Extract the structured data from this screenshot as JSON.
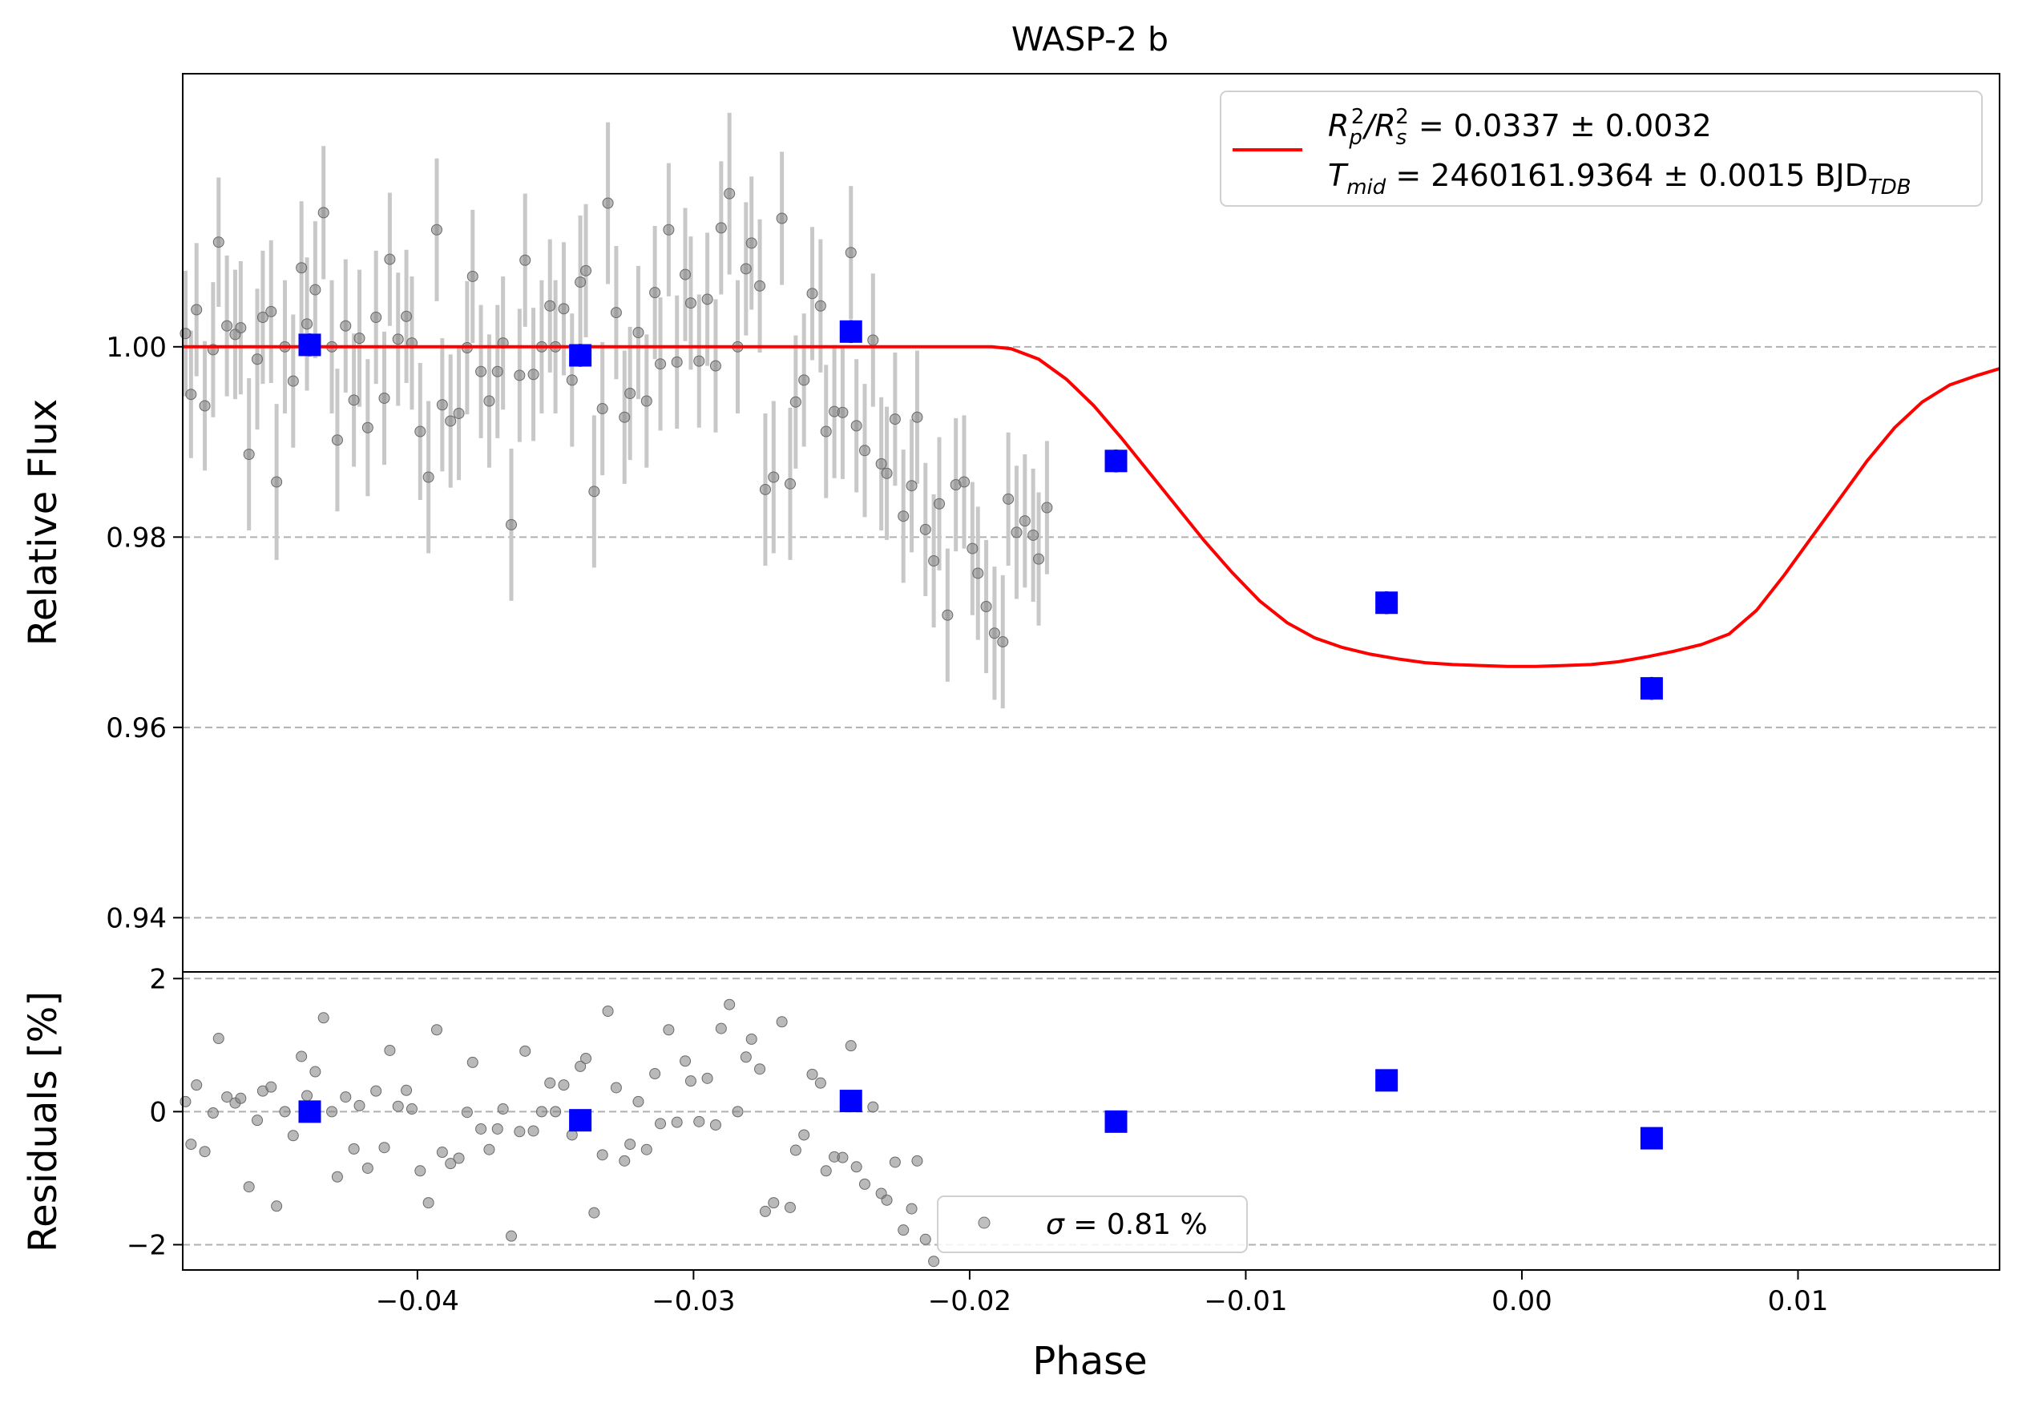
{
  "chart_data": [
    {
      "panel": "main",
      "type": "scatter",
      "title": "WASP-2 b",
      "xlabel": "",
      "ylabel": "Relative Flux",
      "xlim": [
        -0.0485,
        0.0173
      ],
      "ylim": [
        0.9343,
        1.0287
      ],
      "yticks": [
        0.94,
        0.96,
        0.98,
        1.0
      ],
      "ytick_labels": [
        "0.94",
        "0.96",
        "0.98",
        "1.00"
      ],
      "grid": "horizontal dashed",
      "legend_placement": "top-right",
      "legend": {
        "line1": {
          "main": "R",
          "sub": "p",
          "sup": "2",
          "mid": "/R",
          "sub2": "s",
          "sup2": "2",
          "rest": " = 0.0337 ± 0.0032"
        },
        "line2": {
          "main": "T",
          "sub": "mid",
          "rest": " = 2460161.9364 ± 0.0015 BJD",
          "sub2": "TDB"
        }
      },
      "colors": {
        "model": "#ff0000",
        "binned": "#0000ff",
        "points": "#808080",
        "errorbars": "#c8c8c8"
      },
      "model": {
        "name": "transit model",
        "x": [
          -0.0485,
          -0.03,
          -0.0192,
          -0.0185,
          -0.0175,
          -0.0165,
          -0.0155,
          -0.0145,
          -0.0135,
          -0.0125,
          -0.0115,
          -0.0105,
          -0.0095,
          -0.0085,
          -0.0075,
          -0.0065,
          -0.0055,
          -0.0045,
          -0.0035,
          -0.0025,
          -0.0015,
          -0.0005,
          0.0005,
          0.0015,
          0.0025,
          0.0035,
          0.0045,
          0.0055,
          0.0065,
          0.0075,
          0.0085,
          0.0095,
          0.0105,
          0.0115,
          0.0125,
          0.0135,
          0.0145,
          0.0155,
          0.0165,
          0.0173
        ],
        "y": [
          1.0,
          1.0,
          1.0,
          0.9998,
          0.9987,
          0.9966,
          0.9938,
          0.9904,
          0.9868,
          0.9832,
          0.9796,
          0.9763,
          0.9733,
          0.971,
          0.9694,
          0.9684,
          0.9677,
          0.9672,
          0.9668,
          0.9666,
          0.9665,
          0.9664,
          0.9664,
          0.9665,
          0.9666,
          0.9669,
          0.9674,
          0.968,
          0.9687,
          0.9698,
          0.9723,
          0.976,
          0.98,
          0.984,
          0.988,
          0.9915,
          0.9942,
          0.996,
          0.997,
          0.9977
        ]
      },
      "binned": {
        "name": "binned",
        "points": [
          [
            -0.0439,
            1.0002,
            0.0012
          ],
          [
            -0.0341,
            0.9991,
            0.0012
          ],
          [
            -0.0243,
            1.0016,
            0.0012
          ],
          [
            -0.0147,
            0.988,
            0.0012
          ],
          [
            -0.0049,
            0.9731,
            0.0012
          ],
          [
            0.0047,
            0.9641,
            0.0012
          ]
        ]
      },
      "points": [
        [
          -0.0484,
          1.0014,
          0.0066
        ],
        [
          -0.0482,
          0.995,
          0.0067
        ],
        [
          -0.048,
          1.0039,
          0.007
        ],
        [
          -0.0477,
          0.9938,
          0.0068
        ],
        [
          -0.0474,
          0.9997,
          0.0071
        ],
        [
          -0.0472,
          1.011,
          0.0068
        ],
        [
          -0.0469,
          1.0022,
          0.0074
        ],
        [
          -0.0466,
          1.0013,
          0.0068
        ],
        [
          -0.0464,
          1.002,
          0.007
        ],
        [
          -0.0461,
          0.9887,
          0.008
        ],
        [
          -0.0458,
          0.9987,
          0.0074
        ],
        [
          -0.0456,
          1.0031,
          0.007
        ],
        [
          -0.0453,
          1.0037,
          0.0075
        ],
        [
          -0.0451,
          0.9858,
          0.0082
        ],
        [
          -0.0448,
          1.0,
          0.007
        ],
        [
          -0.0445,
          0.9964,
          0.007
        ],
        [
          -0.0442,
          1.0083,
          0.007
        ],
        [
          -0.044,
          1.0024,
          0.007
        ],
        [
          -0.0437,
          1.006,
          0.0072
        ],
        [
          -0.0434,
          1.0141,
          0.007
        ],
        [
          -0.0431,
          1.0,
          0.007
        ],
        [
          -0.0429,
          0.9902,
          0.0075
        ],
        [
          -0.0426,
          1.0022,
          0.007
        ],
        [
          -0.0423,
          0.9944,
          0.007
        ],
        [
          -0.0421,
          1.0009,
          0.0072
        ],
        [
          -0.0418,
          0.9915,
          0.0072
        ],
        [
          -0.0415,
          1.0031,
          0.007
        ],
        [
          -0.0412,
          0.9946,
          0.007
        ],
        [
          -0.041,
          1.0092,
          0.007
        ],
        [
          -0.0407,
          1.0008,
          0.007
        ],
        [
          -0.0404,
          1.0032,
          0.007
        ],
        [
          -0.0402,
          1.0004,
          0.007
        ],
        [
          -0.0399,
          0.9911,
          0.0072
        ],
        [
          -0.0396,
          0.9863,
          0.008
        ],
        [
          -0.0393,
          1.0123,
          0.0075
        ],
        [
          -0.0391,
          0.9939,
          0.007
        ],
        [
          -0.0388,
          0.9922,
          0.007
        ],
        [
          -0.0385,
          0.993,
          0.007
        ],
        [
          -0.0382,
          0.9999,
          0.007
        ],
        [
          -0.038,
          1.0074,
          0.007
        ],
        [
          -0.0377,
          0.9974,
          0.007
        ],
        [
          -0.0374,
          0.9943,
          0.007
        ],
        [
          -0.0371,
          0.9974,
          0.007
        ],
        [
          -0.0369,
          1.0004,
          0.007
        ],
        [
          -0.0366,
          0.9813,
          0.008
        ],
        [
          -0.0363,
          0.997,
          0.007
        ],
        [
          -0.0361,
          1.0091,
          0.007
        ],
        [
          -0.0358,
          0.9971,
          0.007
        ],
        [
          -0.0355,
          1.0,
          0.007
        ],
        [
          -0.0352,
          1.0043,
          0.007
        ],
        [
          -0.035,
          1.0,
          0.007
        ],
        [
          -0.0347,
          1.004,
          0.007
        ],
        [
          -0.0344,
          0.9965,
          0.007
        ],
        [
          -0.0341,
          1.0068,
          0.007
        ],
        [
          -0.0339,
          1.008,
          0.007
        ],
        [
          -0.0336,
          0.9848,
          0.008
        ],
        [
          -0.0333,
          0.9935,
          0.007
        ],
        [
          -0.0331,
          1.0151,
          0.0085
        ],
        [
          -0.0328,
          1.0036,
          0.007
        ],
        [
          -0.0325,
          0.9926,
          0.007
        ],
        [
          -0.0323,
          0.9951,
          0.007
        ],
        [
          -0.032,
          1.0015,
          0.007
        ],
        [
          -0.0317,
          0.9943,
          0.007
        ],
        [
          -0.0314,
          1.0057,
          0.007
        ],
        [
          -0.0312,
          0.9982,
          0.007
        ],
        [
          -0.0309,
          1.0123,
          0.007
        ],
        [
          -0.0306,
          0.9984,
          0.007
        ],
        [
          -0.0303,
          1.0076,
          0.007
        ],
        [
          -0.0301,
          1.0046,
          0.007
        ],
        [
          -0.0298,
          0.9985,
          0.007
        ],
        [
          -0.0295,
          1.005,
          0.007
        ],
        [
          -0.0292,
          0.998,
          0.007
        ],
        [
          -0.029,
          1.0125,
          0.007
        ],
        [
          -0.0287,
          1.0161,
          0.0085
        ],
        [
          -0.0284,
          1.0,
          0.007
        ],
        [
          -0.0281,
          1.0082,
          0.007
        ],
        [
          -0.0279,
          1.0109,
          0.007
        ],
        [
          -0.0276,
          1.0064,
          0.007
        ],
        [
          -0.0274,
          0.985,
          0.008
        ],
        [
          -0.0271,
          0.9863,
          0.008
        ],
        [
          -0.0268,
          1.0135,
          0.007
        ],
        [
          -0.0265,
          0.9856,
          0.008
        ],
        [
          -0.0263,
          0.9942,
          0.007
        ],
        [
          -0.026,
          0.9965,
          0.007
        ],
        [
          -0.0257,
          1.0056,
          0.007
        ],
        [
          -0.0254,
          1.0043,
          0.007
        ],
        [
          -0.0252,
          0.9911,
          0.007
        ],
        [
          -0.0249,
          0.9932,
          0.007
        ],
        [
          -0.0246,
          0.9931,
          0.007
        ],
        [
          -0.0243,
          1.0099,
          0.007
        ],
        [
          -0.0241,
          0.9917,
          0.007
        ],
        [
          -0.0238,
          0.9891,
          0.007
        ],
        [
          -0.0235,
          1.0007,
          0.007
        ],
        [
          -0.0232,
          0.9877,
          0.007
        ],
        [
          -0.023,
          0.9867,
          0.007
        ],
        [
          -0.0227,
          0.9924,
          0.007
        ],
        [
          -0.0224,
          0.9822,
          0.007
        ],
        [
          -0.0221,
          0.9854,
          0.007
        ],
        [
          -0.0219,
          0.9926,
          0.007
        ],
        [
          -0.0216,
          0.9808,
          0.007
        ],
        [
          -0.0213,
          0.9775,
          0.007
        ],
        [
          -0.0211,
          0.9835,
          0.007
        ],
        [
          -0.0208,
          0.9718,
          0.007
        ],
        [
          -0.0205,
          0.9855,
          0.007
        ],
        [
          -0.0202,
          0.9858,
          0.007
        ],
        [
          -0.0199,
          0.9788,
          0.007
        ],
        [
          -0.0197,
          0.9762,
          0.007
        ],
        [
          -0.0194,
          0.9727,
          0.007
        ],
        [
          -0.0191,
          0.9699,
          0.007
        ],
        [
          -0.0188,
          0.969,
          0.007
        ],
        [
          -0.0186,
          0.984,
          0.007
        ],
        [
          -0.0183,
          0.9805,
          0.007
        ],
        [
          -0.018,
          0.9817,
          0.007
        ],
        [
          -0.0177,
          0.9802,
          0.007
        ],
        [
          -0.0175,
          0.9777,
          0.007
        ],
        [
          -0.0172,
          0.9831,
          0.007
        ]
      ]
    },
    {
      "panel": "residuals",
      "type": "scatter",
      "xlabel": "Phase",
      "ylabel": "Residuals [%]",
      "xlim": [
        -0.0485,
        0.0173
      ],
      "ylim": [
        -2.38,
        2.1
      ],
      "xticks": [
        -0.04,
        -0.03,
        -0.02,
        -0.01,
        0.0,
        0.01
      ],
      "xtick_labels": [
        "−0.04",
        "−0.03",
        "−0.02",
        "−0.01",
        "0.00",
        "0.01"
      ],
      "yticks": [
        -2,
        0,
        2
      ],
      "ytick_labels": [
        "−2",
        "0",
        "2"
      ],
      "grid": "horizontal dashed",
      "legend_placement": "bottom-center",
      "legend": {
        "symbol": "σ",
        "rest": " = 0.81 %"
      },
      "binned": [
        [
          -0.0439,
          0.0
        ],
        [
          -0.0341,
          -0.13
        ],
        [
          -0.0243,
          0.16
        ],
        [
          -0.0147,
          -0.15
        ],
        [
          -0.0049,
          0.47
        ],
        [
          0.0047,
          -0.4
        ]
      ],
      "points": [
        [
          -0.0484,
          0.15
        ],
        [
          -0.0482,
          -0.49
        ],
        [
          -0.048,
          0.4
        ],
        [
          -0.0477,
          -0.6
        ],
        [
          -0.0474,
          -0.02
        ],
        [
          -0.0472,
          1.1
        ],
        [
          -0.0469,
          0.22
        ],
        [
          -0.0466,
          0.13
        ],
        [
          -0.0464,
          0.2
        ],
        [
          -0.0461,
          -1.13
        ],
        [
          -0.0458,
          -0.13
        ],
        [
          -0.0456,
          0.31
        ],
        [
          -0.0453,
          0.37
        ],
        [
          -0.0451,
          -1.42
        ],
        [
          -0.0448,
          0.0
        ],
        [
          -0.0445,
          -0.36
        ],
        [
          -0.0442,
          0.83
        ],
        [
          -0.044,
          0.24
        ],
        [
          -0.0437,
          0.6
        ],
        [
          -0.0434,
          1.41
        ],
        [
          -0.0431,
          0.0
        ],
        [
          -0.0429,
          -0.98
        ],
        [
          -0.0426,
          0.22
        ],
        [
          -0.0423,
          -0.56
        ],
        [
          -0.0421,
          0.09
        ],
        [
          -0.0418,
          -0.85
        ],
        [
          -0.0415,
          0.31
        ],
        [
          -0.0412,
          -0.54
        ],
        [
          -0.041,
          0.92
        ],
        [
          -0.0407,
          0.08
        ],
        [
          -0.0404,
          0.32
        ],
        [
          -0.0402,
          0.04
        ],
        [
          -0.0399,
          -0.89
        ],
        [
          -0.0396,
          -1.37
        ],
        [
          -0.0393,
          1.23
        ],
        [
          -0.0391,
          -0.61
        ],
        [
          -0.0388,
          -0.78
        ],
        [
          -0.0385,
          -0.7
        ],
        [
          -0.0382,
          -0.01
        ],
        [
          -0.038,
          0.74
        ],
        [
          -0.0377,
          -0.26
        ],
        [
          -0.0374,
          -0.57
        ],
        [
          -0.0371,
          -0.26
        ],
        [
          -0.0369,
          0.04
        ],
        [
          -0.0366,
          -1.87
        ],
        [
          -0.0363,
          -0.3
        ],
        [
          -0.0361,
          0.91
        ],
        [
          -0.0358,
          -0.29
        ],
        [
          -0.0355,
          0.0
        ],
        [
          -0.0352,
          0.43
        ],
        [
          -0.035,
          0.0
        ],
        [
          -0.0347,
          0.4
        ],
        [
          -0.0344,
          -0.35
        ],
        [
          -0.0341,
          0.68
        ],
        [
          -0.0339,
          0.8
        ],
        [
          -0.0336,
          -1.52
        ],
        [
          -0.0333,
          -0.65
        ],
        [
          -0.0331,
          1.51
        ],
        [
          -0.0328,
          0.36
        ],
        [
          -0.0325,
          -0.74
        ],
        [
          -0.0323,
          -0.49
        ],
        [
          -0.032,
          0.15
        ],
        [
          -0.0317,
          -0.57
        ],
        [
          -0.0314,
          0.57
        ],
        [
          -0.0312,
          -0.18
        ],
        [
          -0.0309,
          1.23
        ],
        [
          -0.0306,
          -0.16
        ],
        [
          -0.0303,
          0.76
        ],
        [
          -0.0301,
          0.46
        ],
        [
          -0.0298,
          -0.15
        ],
        [
          -0.0295,
          0.5
        ],
        [
          -0.0292,
          -0.2
        ],
        [
          -0.029,
          1.25
        ],
        [
          -0.0287,
          1.61
        ],
        [
          -0.0284,
          0.0
        ],
        [
          -0.0281,
          0.82
        ],
        [
          -0.0279,
          1.09
        ],
        [
          -0.0276,
          0.64
        ],
        [
          -0.0274,
          -1.5
        ],
        [
          -0.0271,
          -1.37
        ],
        [
          -0.0268,
          1.35
        ],
        [
          -0.0265,
          -1.44
        ],
        [
          -0.0263,
          -0.58
        ],
        [
          -0.026,
          -0.35
        ],
        [
          -0.0257,
          0.56
        ],
        [
          -0.0254,
          0.43
        ],
        [
          -0.0252,
          -0.89
        ],
        [
          -0.0249,
          -0.68
        ],
        [
          -0.0246,
          -0.69
        ],
        [
          -0.0243,
          0.99
        ],
        [
          -0.0241,
          -0.83
        ],
        [
          -0.0238,
          -1.09
        ],
        [
          -0.0235,
          0.07
        ],
        [
          -0.0232,
          -1.23
        ],
        [
          -0.023,
          -1.33
        ],
        [
          -0.0227,
          -0.76
        ],
        [
          -0.0224,
          -1.78
        ],
        [
          -0.0221,
          -1.46
        ],
        [
          -0.0219,
          -0.74
        ],
        [
          -0.0216,
          -1.92
        ],
        [
          -0.0213,
          -2.25
        ]
      ]
    }
  ]
}
